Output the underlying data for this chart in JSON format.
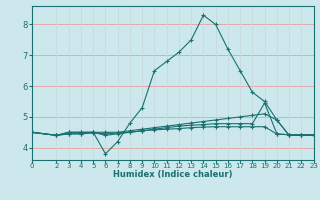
{
  "xlabel": "Humidex (Indice chaleur)",
  "bg_color": "#cce8ec",
  "grid_color_h": "#e8a0a0",
  "grid_color_v": "#c8d8dc",
  "line_color": "#1a7070",
  "xlim": [
    0,
    23
  ],
  "ylim": [
    3.6,
    8.6
  ],
  "xticks": [
    0,
    2,
    3,
    4,
    5,
    6,
    7,
    8,
    9,
    10,
    11,
    12,
    13,
    14,
    15,
    16,
    17,
    18,
    19,
    20,
    21,
    22,
    23
  ],
  "yticks": [
    4,
    5,
    6,
    7,
    8
  ],
  "lines": [
    {
      "x": [
        0,
        2,
        3,
        4,
        5,
        6,
        7,
        8,
        9,
        10,
        11,
        12,
        13,
        14,
        15,
        16,
        17,
        18,
        19,
        20,
        21,
        22,
        23
      ],
      "y": [
        4.5,
        4.4,
        4.5,
        4.5,
        4.5,
        3.8,
        4.2,
        4.8,
        5.3,
        6.5,
        6.8,
        7.1,
        7.5,
        8.3,
        8.0,
        7.2,
        6.5,
        5.8,
        5.5,
        4.9,
        4.4,
        4.4,
        4.4
      ]
    },
    {
      "x": [
        0,
        2,
        3,
        4,
        5,
        6,
        7,
        8,
        9,
        10,
        11,
        12,
        13,
        14,
        15,
        16,
        17,
        18,
        19,
        20,
        21,
        22,
        23
      ],
      "y": [
        4.5,
        4.4,
        4.5,
        4.5,
        4.5,
        4.5,
        4.5,
        4.55,
        4.6,
        4.65,
        4.7,
        4.75,
        4.8,
        4.85,
        4.9,
        4.95,
        5.0,
        5.05,
        5.1,
        4.9,
        4.4,
        4.4,
        4.4
      ]
    },
    {
      "x": [
        0,
        2,
        3,
        4,
        5,
        6,
        7,
        8,
        9,
        10,
        11,
        12,
        13,
        14,
        15,
        16,
        17,
        18,
        19,
        20,
        21,
        22,
        23
      ],
      "y": [
        4.5,
        4.4,
        4.45,
        4.45,
        4.48,
        4.45,
        4.48,
        4.5,
        4.55,
        4.6,
        4.65,
        4.7,
        4.73,
        4.75,
        4.78,
        4.78,
        4.78,
        4.78,
        5.45,
        4.45,
        4.42,
        4.42,
        4.42
      ]
    },
    {
      "x": [
        0,
        2,
        3,
        4,
        5,
        6,
        7,
        8,
        9,
        10,
        11,
        12,
        13,
        14,
        15,
        16,
        17,
        18,
        19,
        20,
        21,
        22,
        23
      ],
      "y": [
        4.5,
        4.4,
        4.45,
        4.45,
        4.5,
        4.4,
        4.45,
        4.5,
        4.55,
        4.58,
        4.6,
        4.62,
        4.65,
        4.67,
        4.68,
        4.68,
        4.68,
        4.68,
        4.68,
        4.44,
        4.42,
        4.42,
        4.42
      ]
    }
  ]
}
